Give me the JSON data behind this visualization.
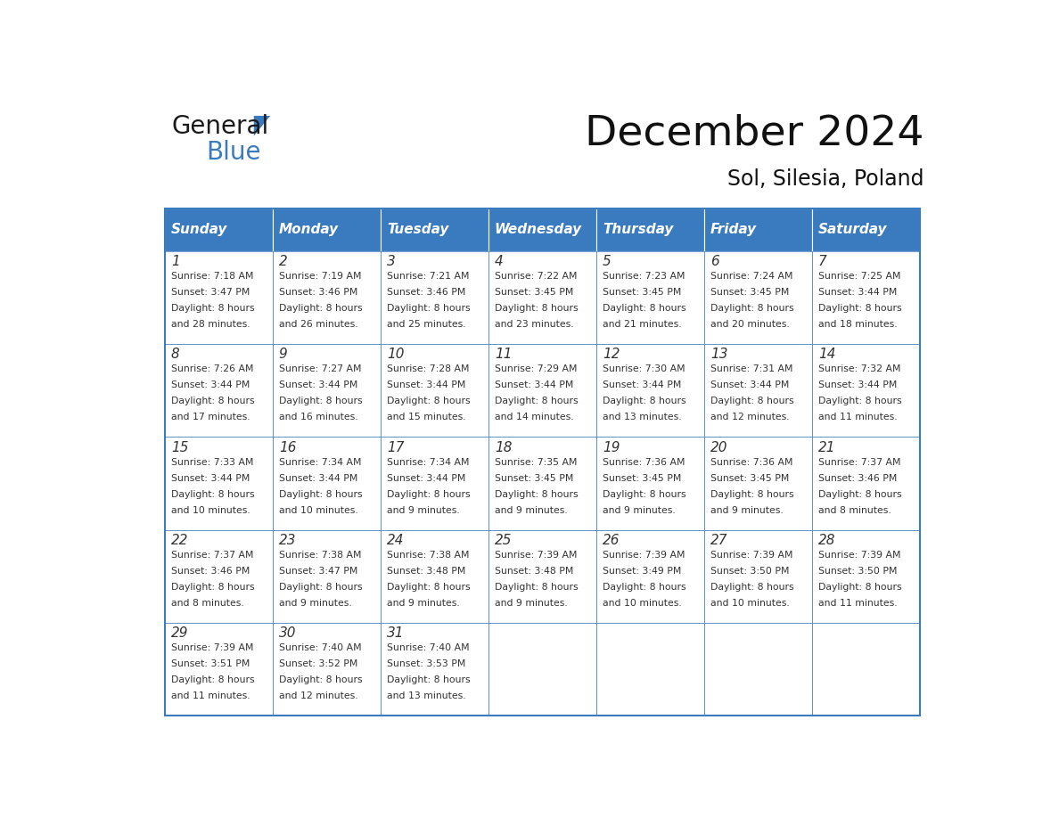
{
  "title": "December 2024",
  "subtitle": "Sol, Silesia, Poland",
  "header_color": "#3a7abf",
  "header_text_color": "#ffffff",
  "cell_bg_color": "#ffffff",
  "border_color": "#3a7abf",
  "text_color": "#333333",
  "days_of_week": [
    "Sunday",
    "Monday",
    "Tuesday",
    "Wednesday",
    "Thursday",
    "Friday",
    "Saturday"
  ],
  "weeks": [
    [
      {
        "day": 1,
        "sunrise": "7:18 AM",
        "sunset": "3:47 PM",
        "daylight_minutes": "28"
      },
      {
        "day": 2,
        "sunrise": "7:19 AM",
        "sunset": "3:46 PM",
        "daylight_minutes": "26"
      },
      {
        "day": 3,
        "sunrise": "7:21 AM",
        "sunset": "3:46 PM",
        "daylight_minutes": "25"
      },
      {
        "day": 4,
        "sunrise": "7:22 AM",
        "sunset": "3:45 PM",
        "daylight_minutes": "23"
      },
      {
        "day": 5,
        "sunrise": "7:23 AM",
        "sunset": "3:45 PM",
        "daylight_minutes": "21"
      },
      {
        "day": 6,
        "sunrise": "7:24 AM",
        "sunset": "3:45 PM",
        "daylight_minutes": "20"
      },
      {
        "day": 7,
        "sunrise": "7:25 AM",
        "sunset": "3:44 PM",
        "daylight_minutes": "18"
      }
    ],
    [
      {
        "day": 8,
        "sunrise": "7:26 AM",
        "sunset": "3:44 PM",
        "daylight_minutes": "17"
      },
      {
        "day": 9,
        "sunrise": "7:27 AM",
        "sunset": "3:44 PM",
        "daylight_minutes": "16"
      },
      {
        "day": 10,
        "sunrise": "7:28 AM",
        "sunset": "3:44 PM",
        "daylight_minutes": "15"
      },
      {
        "day": 11,
        "sunrise": "7:29 AM",
        "sunset": "3:44 PM",
        "daylight_minutes": "14"
      },
      {
        "day": 12,
        "sunrise": "7:30 AM",
        "sunset": "3:44 PM",
        "daylight_minutes": "13"
      },
      {
        "day": 13,
        "sunrise": "7:31 AM",
        "sunset": "3:44 PM",
        "daylight_minutes": "12"
      },
      {
        "day": 14,
        "sunrise": "7:32 AM",
        "sunset": "3:44 PM",
        "daylight_minutes": "11"
      }
    ],
    [
      {
        "day": 15,
        "sunrise": "7:33 AM",
        "sunset": "3:44 PM",
        "daylight_minutes": "10"
      },
      {
        "day": 16,
        "sunrise": "7:34 AM",
        "sunset": "3:44 PM",
        "daylight_minutes": "10"
      },
      {
        "day": 17,
        "sunrise": "7:34 AM",
        "sunset": "3:44 PM",
        "daylight_minutes": "9"
      },
      {
        "day": 18,
        "sunrise": "7:35 AM",
        "sunset": "3:45 PM",
        "daylight_minutes": "9"
      },
      {
        "day": 19,
        "sunrise": "7:36 AM",
        "sunset": "3:45 PM",
        "daylight_minutes": "9"
      },
      {
        "day": 20,
        "sunrise": "7:36 AM",
        "sunset": "3:45 PM",
        "daylight_minutes": "9"
      },
      {
        "day": 21,
        "sunrise": "7:37 AM",
        "sunset": "3:46 PM",
        "daylight_minutes": "8"
      }
    ],
    [
      {
        "day": 22,
        "sunrise": "7:37 AM",
        "sunset": "3:46 PM",
        "daylight_minutes": "8"
      },
      {
        "day": 23,
        "sunrise": "7:38 AM",
        "sunset": "3:47 PM",
        "daylight_minutes": "9"
      },
      {
        "day": 24,
        "sunrise": "7:38 AM",
        "sunset": "3:48 PM",
        "daylight_minutes": "9"
      },
      {
        "day": 25,
        "sunrise": "7:39 AM",
        "sunset": "3:48 PM",
        "daylight_minutes": "9"
      },
      {
        "day": 26,
        "sunrise": "7:39 AM",
        "sunset": "3:49 PM",
        "daylight_minutes": "10"
      },
      {
        "day": 27,
        "sunrise": "7:39 AM",
        "sunset": "3:50 PM",
        "daylight_minutes": "10"
      },
      {
        "day": 28,
        "sunrise": "7:39 AM",
        "sunset": "3:50 PM",
        "daylight_minutes": "11"
      }
    ],
    [
      {
        "day": 29,
        "sunrise": "7:39 AM",
        "sunset": "3:51 PM",
        "daylight_minutes": "11"
      },
      {
        "day": 30,
        "sunrise": "7:40 AM",
        "sunset": "3:52 PM",
        "daylight_minutes": "12"
      },
      {
        "day": 31,
        "sunrise": "7:40 AM",
        "sunset": "3:53 PM",
        "daylight_minutes": "13"
      },
      null,
      null,
      null,
      null
    ]
  ]
}
